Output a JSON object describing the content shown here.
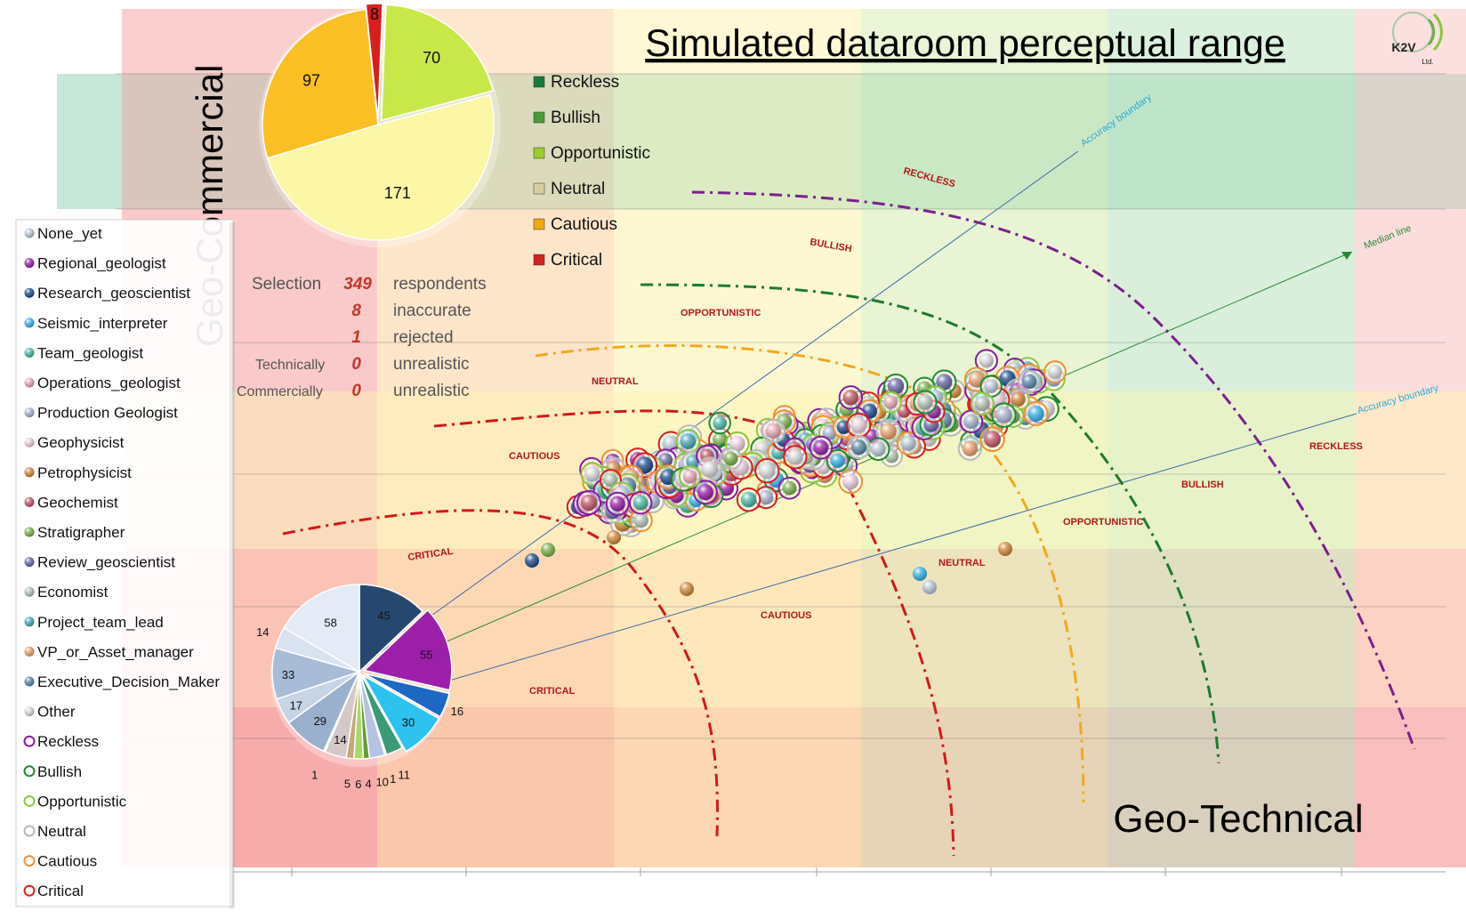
{
  "logo": {
    "text": "K2V",
    "sub": "Ltd."
  },
  "chart_data": {
    "type": "scatter",
    "title": "Simulated dataroom perceptual range",
    "xlabel": "Geo-Technical",
    "ylabel": "Geo-Commercial",
    "colors": {
      "reckless": "#7a1f8f",
      "bullish": "#1e7a2e",
      "opportunistic": "#a8d13a",
      "neutral": "#ded9b0",
      "cautious": "#f2a820",
      "critical": "#d11a1a"
    },
    "category_pie": {
      "slices": [
        {
          "label": "Critical",
          "value": 8,
          "color": "#d81e1e"
        },
        {
          "label": "Opportunistic",
          "value": 70,
          "color": "#c8e84a"
        },
        {
          "label": "Neutral",
          "value": 171,
          "color": "#fbf7a6"
        },
        {
          "label": "Cautious",
          "value": 97,
          "color": "#fbbf26"
        }
      ],
      "labels": [
        "8",
        "70",
        "171",
        "97"
      ]
    },
    "category_legend": [
      {
        "label": "Reckless",
        "color": "#1a7a3a"
      },
      {
        "label": "Bullish",
        "color": "#4a9a3a"
      },
      {
        "label": "Opportunistic",
        "color": "#9acd32"
      },
      {
        "label": "Neutral",
        "color": "#d8cfa0"
      },
      {
        "label": "Cautious",
        "color": "#f0a818"
      },
      {
        "label": "Critical",
        "color": "#d42020"
      }
    ],
    "stats": {
      "selection_label": "Selection",
      "technically_label": "Technically",
      "commercially_label": "Commercially",
      "values": [
        "349",
        "8",
        "1",
        "0",
        "0"
      ],
      "descs": [
        "respondents",
        "inaccurate",
        "rejected",
        "unrealistic",
        "unrealistic"
      ]
    },
    "role_legend": [
      {
        "label": "None_yet",
        "color": "#b8c8d8",
        "type": "ball"
      },
      {
        "label": "Regional_geologist",
        "color": "#9a22a8",
        "type": "ball"
      },
      {
        "label": "Research_geoscientist",
        "color": "#1e4c8c",
        "type": "ball"
      },
      {
        "label": "Seismic_interpreter",
        "color": "#36b4e6",
        "type": "ball"
      },
      {
        "label": "Team_geologist",
        "color": "#4cb8a8",
        "type": "ball"
      },
      {
        "label": "Operations_geologist",
        "color": "#e6a8b4",
        "type": "ball"
      },
      {
        "label": "Production Geologist",
        "color": "#a8b4d0",
        "type": "ball"
      },
      {
        "label": "Geophysicist",
        "color": "#ecd0e0",
        "type": "ball"
      },
      {
        "label": "Petrophysicist",
        "color": "#d0883c",
        "type": "ball"
      },
      {
        "label": "Geochemist",
        "color": "#c05868",
        "type": "ball"
      },
      {
        "label": "Stratigrapher",
        "color": "#7ab04c",
        "type": "ball"
      },
      {
        "label": "Review_geoscientist",
        "color": "#6a6aa8",
        "type": "ball"
      },
      {
        "label": "Economist",
        "color": "#b4c4b4",
        "type": "ball"
      },
      {
        "label": "Project_team_lead",
        "color": "#4aa8b8",
        "type": "ball"
      },
      {
        "label": "VP_or_Asset_manager",
        "color": "#e8a070",
        "type": "ball"
      },
      {
        "label": "Executive_Decision_Maker",
        "color": "#5a88a8",
        "type": "ball"
      },
      {
        "label": "Other",
        "color": "#d8d8d8",
        "type": "ball"
      },
      {
        "label": "Reckless",
        "color": "#8a1aa0",
        "type": "ring"
      },
      {
        "label": "Bullish",
        "color": "#1e8a2e",
        "type": "ring"
      },
      {
        "label": "Opportunistic",
        "color": "#8ac83a",
        "type": "ring"
      },
      {
        "label": "Neutral",
        "color": "#b8b8b8",
        "type": "ring"
      },
      {
        "label": "Cautious",
        "color": "#f09030",
        "type": "ring"
      },
      {
        "label": "Critical",
        "color": "#d81e1e",
        "type": "ring"
      }
    ],
    "role_pie": {
      "slices": [
        {
          "value": 45,
          "color": "#27486e"
        },
        {
          "value": 55,
          "color": "#9c1faa"
        },
        {
          "value": 16,
          "color": "#1e68c4"
        },
        {
          "value": 30,
          "color": "#2ec2ee"
        },
        {
          "value": 11,
          "color": "#3a9a78"
        },
        {
          "value": 1,
          "color": "#e8a8b8"
        },
        {
          "value": 10,
          "color": "#b4c4e0"
        },
        {
          "value": 4,
          "color": "#6a9a3a"
        },
        {
          "value": 6,
          "color": "#a8d868"
        },
        {
          "value": 5,
          "color": "#c6a878"
        },
        {
          "value": 14,
          "color": "#d4c8c8"
        },
        {
          "value": 1,
          "color": "#e8e0e0"
        },
        {
          "value": 29,
          "color": "#9ab0cc"
        },
        {
          "value": 17,
          "color": "#c6d4e6"
        },
        {
          "value": 33,
          "color": "#a8bcd8"
        },
        {
          "value": 14,
          "color": "#d8e2f0"
        },
        {
          "value": 58,
          "color": "#e4eaf6"
        }
      ],
      "labels": [
        "45",
        "55",
        "16",
        "30",
        "11",
        "1",
        "10",
        "4",
        "6",
        "5",
        "14",
        "1",
        "29",
        "17",
        "33",
        "14",
        "58"
      ]
    },
    "zone_labels": {
      "upper": [
        "RECKLESS",
        "BULLISH",
        "OPPORTUNISTIC",
        "NEUTRAL",
        "CAUTIOUS",
        "CRITICAL"
      ],
      "lower": [
        "RECKLESS",
        "BULLISH",
        "OPPORTUNISTIC",
        "NEUTRAL",
        "CAUTIOUS",
        "CRITICAL"
      ]
    },
    "line_labels": {
      "accuracy_upper": "Accuracy boundary",
      "median": "Median line",
      "accuracy_lower": "Accuracy boundary"
    },
    "grid": true
  }
}
